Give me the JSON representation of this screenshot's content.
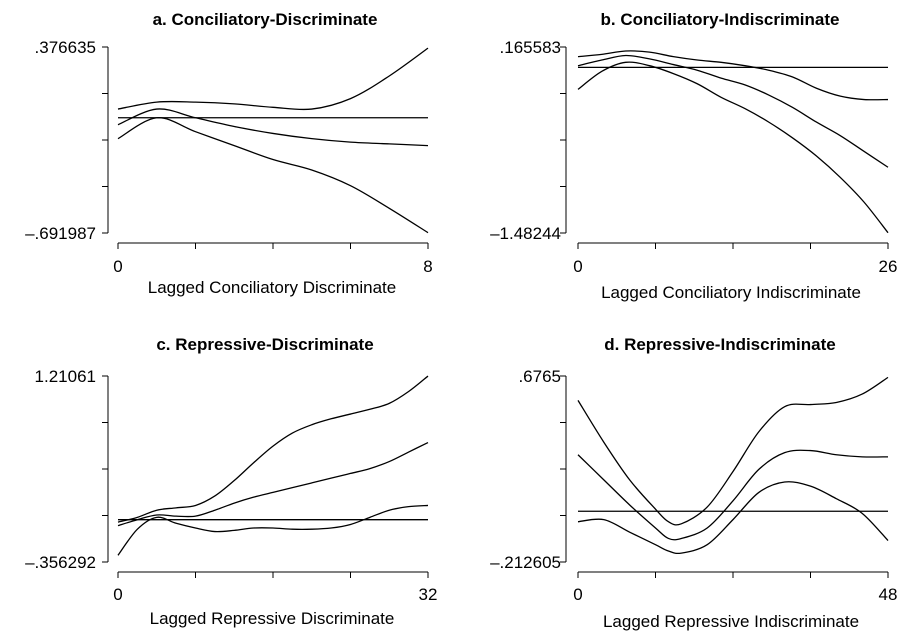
{
  "chart_data": [
    {
      "type": "line",
      "title": "a. Conciliatory-Discriminate",
      "xlabel": "Lagged Conciliatory Discriminate",
      "xlim": [
        0,
        8
      ],
      "ylim": [
        -0.691987,
        0.376635
      ],
      "xtick_labels": [
        "0",
        "8"
      ],
      "ytick_labels": [
        ".376635",
        "–.691987"
      ],
      "reference_line": -0.03,
      "series": [
        {
          "x": [
            0,
            1,
            2,
            3,
            4,
            5,
            6,
            7,
            8
          ],
          "y": [
            0.02,
            0.06,
            0.06,
            0.05,
            0.03,
            0.02,
            0.08,
            0.21,
            0.37
          ]
        },
        {
          "x": [
            0,
            1,
            2,
            3,
            4,
            5,
            6,
            7,
            8
          ],
          "y": [
            -0.07,
            0.02,
            -0.03,
            -0.08,
            -0.12,
            -0.15,
            -0.17,
            -0.18,
            -0.19
          ]
        },
        {
          "x": [
            0,
            1,
            2,
            3,
            4,
            5,
            6,
            7,
            8
          ],
          "y": [
            -0.15,
            -0.03,
            -0.11,
            -0.19,
            -0.27,
            -0.33,
            -0.42,
            -0.55,
            -0.69
          ]
        }
      ]
    },
    {
      "type": "line",
      "title": "b. Conciliatory-Indiscriminate",
      "xlabel": "Lagged Conciliatory Indiscriminate",
      "xlim": [
        0,
        26
      ],
      "ylim": [
        -1.48244,
        0.165583
      ],
      "xtick_labels": [
        "0",
        "26"
      ],
      "ytick_labels": [
        ".165583",
        "–1.48244"
      ],
      "reference_line": -0.015,
      "series": [
        {
          "x": [
            0,
            2,
            4,
            6,
            8,
            10,
            12,
            14,
            16,
            18,
            20,
            22,
            24,
            26
          ],
          "y": [
            0.08,
            0.1,
            0.13,
            0.12,
            0.08,
            0.05,
            0.03,
            0.0,
            -0.04,
            -0.1,
            -0.2,
            -0.27,
            -0.3,
            -0.3
          ]
        },
        {
          "x": [
            0,
            2,
            4,
            6,
            8,
            10,
            12,
            14,
            16,
            18,
            20,
            22,
            24,
            26
          ],
          "y": [
            0.0,
            0.05,
            0.09,
            0.06,
            0.01,
            -0.04,
            -0.11,
            -0.17,
            -0.26,
            -0.37,
            -0.5,
            -0.62,
            -0.76,
            -0.9
          ]
        },
        {
          "x": [
            0,
            2,
            4,
            6,
            8,
            10,
            12,
            14,
            16,
            18,
            20,
            22,
            24,
            26
          ],
          "y": [
            -0.21,
            -0.05,
            0.03,
            0.0,
            -0.07,
            -0.16,
            -0.28,
            -0.38,
            -0.5,
            -0.64,
            -0.8,
            -0.99,
            -1.21,
            -1.48
          ]
        }
      ]
    },
    {
      "type": "line",
      "title": "c. Repressive-Discriminate",
      "xlabel": "Lagged Repressive Discriminate",
      "xlim": [
        0,
        32
      ],
      "ylim": [
        -0.356292,
        1.21061
      ],
      "xtick_labels": [
        "0",
        "32"
      ],
      "ytick_labels": [
        "1.21061",
        "–.356292"
      ],
      "reference_line": 0.0,
      "series": [
        {
          "x": [
            0,
            2,
            4,
            6,
            8,
            10,
            12,
            14,
            16,
            18,
            20,
            22,
            24,
            26,
            28,
            30,
            32
          ],
          "y": [
            -0.02,
            0.02,
            0.08,
            0.1,
            0.12,
            0.2,
            0.33,
            0.48,
            0.62,
            0.73,
            0.8,
            0.85,
            0.89,
            0.93,
            0.98,
            1.08,
            1.21
          ]
        },
        {
          "x": [
            0,
            2,
            4,
            6,
            8,
            10,
            12,
            14,
            16,
            18,
            20,
            22,
            24,
            26,
            28,
            30,
            32
          ],
          "y": [
            -0.05,
            0.0,
            0.04,
            0.03,
            0.03,
            0.08,
            0.14,
            0.19,
            0.23,
            0.27,
            0.31,
            0.35,
            0.39,
            0.43,
            0.49,
            0.57,
            0.65
          ]
        },
        {
          "x": [
            0,
            2,
            4,
            6,
            8,
            10,
            12,
            14,
            16,
            18,
            20,
            22,
            24,
            26,
            28,
            30,
            32
          ],
          "y": [
            -0.3,
            -0.08,
            0.02,
            -0.03,
            -0.07,
            -0.1,
            -0.09,
            -0.07,
            -0.07,
            -0.08,
            -0.08,
            -0.07,
            -0.04,
            0.02,
            0.08,
            0.11,
            0.12
          ]
        }
      ]
    },
    {
      "type": "line",
      "title": "d. Repressive-Indiscriminate",
      "xlabel": "Lagged Repressive Indiscriminate",
      "xlim": [
        0,
        48
      ],
      "ylim": [
        -0.212605,
        0.6765
      ],
      "xtick_labels": [
        "0",
        "48"
      ],
      "ytick_labels": [
        ".6765",
        "–.212605"
      ],
      "reference_line": 0.03,
      "series": [
        {
          "x": [
            0,
            4,
            8,
            12,
            14,
            16,
            20,
            24,
            28,
            32,
            36,
            40,
            44,
            48
          ],
          "y": [
            0.56,
            0.36,
            0.18,
            0.04,
            -0.02,
            -0.03,
            0.05,
            0.22,
            0.41,
            0.53,
            0.54,
            0.55,
            0.59,
            0.67
          ]
        },
        {
          "x": [
            0,
            4,
            8,
            12,
            14,
            16,
            20,
            24,
            28,
            32,
            36,
            40,
            44,
            48
          ],
          "y": [
            0.3,
            0.18,
            0.06,
            -0.05,
            -0.1,
            -0.1,
            -0.05,
            0.08,
            0.23,
            0.31,
            0.32,
            0.3,
            0.29,
            0.29
          ]
        },
        {
          "x": [
            0,
            4,
            8,
            12,
            14,
            16,
            20,
            24,
            28,
            32,
            36,
            40,
            44,
            48
          ],
          "y": [
            -0.02,
            -0.01,
            -0.07,
            -0.13,
            -0.16,
            -0.17,
            -0.13,
            -0.01,
            0.12,
            0.17,
            0.15,
            0.09,
            0.02,
            -0.11
          ]
        }
      ]
    }
  ]
}
